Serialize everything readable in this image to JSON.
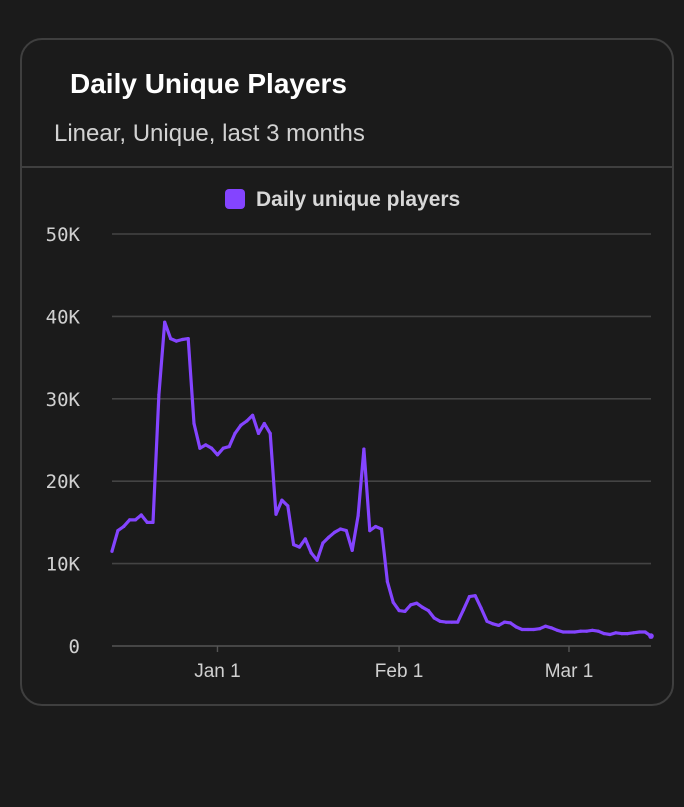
{
  "card": {
    "title": "Daily Unique Players",
    "subtitle": "Linear, Unique, last 3 months"
  },
  "colors": {
    "background": "#1b1b1b",
    "border": "#3f3f3f",
    "series": "#8444ff",
    "grid": "#444444"
  },
  "chart_data": {
    "type": "line",
    "title": "Daily Unique Players",
    "subtitle": "Linear, Unique, last 3 months",
    "legend": "top-center",
    "grid": true,
    "ylim": [
      0,
      50000
    ],
    "yticks": [
      0,
      10000,
      20000,
      30000,
      40000,
      50000
    ],
    "ytick_labels": [
      "0",
      "10K",
      "20K",
      "30K",
      "40K",
      "50K"
    ],
    "xlim": [
      "2023-12-14",
      "2024-03-15"
    ],
    "xticks": [
      "2024-01-01",
      "2024-02-01",
      "2024-03-01"
    ],
    "xtick_labels": [
      "Jan 1",
      "Feb 1",
      "Mar 1"
    ],
    "series": [
      {
        "name": "Daily unique players",
        "color": "#8444ff",
        "x": [
          "2023-12-14",
          "2023-12-15",
          "2023-12-16",
          "2023-12-17",
          "2023-12-18",
          "2023-12-19",
          "2023-12-20",
          "2023-12-21",
          "2023-12-22",
          "2023-12-23",
          "2023-12-24",
          "2023-12-25",
          "2023-12-26",
          "2023-12-27",
          "2023-12-28",
          "2023-12-29",
          "2023-12-30",
          "2023-12-31",
          "2024-01-01",
          "2024-01-02",
          "2024-01-03",
          "2024-01-04",
          "2024-01-05",
          "2024-01-06",
          "2024-01-07",
          "2024-01-08",
          "2024-01-09",
          "2024-01-10",
          "2024-01-11",
          "2024-01-12",
          "2024-01-13",
          "2024-01-14",
          "2024-01-15",
          "2024-01-16",
          "2024-01-17",
          "2024-01-18",
          "2024-01-19",
          "2024-01-20",
          "2024-01-21",
          "2024-01-22",
          "2024-01-23",
          "2024-01-24",
          "2024-01-25",
          "2024-01-26",
          "2024-01-27",
          "2024-01-28",
          "2024-01-29",
          "2024-01-30",
          "2024-01-31",
          "2024-02-01",
          "2024-02-02",
          "2024-02-03",
          "2024-02-04",
          "2024-02-05",
          "2024-02-06",
          "2024-02-07",
          "2024-02-08",
          "2024-02-09",
          "2024-02-10",
          "2024-02-11",
          "2024-02-12",
          "2024-02-13",
          "2024-02-14",
          "2024-02-15",
          "2024-02-16",
          "2024-02-17",
          "2024-02-18",
          "2024-02-19",
          "2024-02-20",
          "2024-02-21",
          "2024-02-22",
          "2024-02-23",
          "2024-02-24",
          "2024-02-25",
          "2024-02-26",
          "2024-02-27",
          "2024-02-28",
          "2024-02-29",
          "2024-03-01",
          "2024-03-02",
          "2024-03-03",
          "2024-03-04",
          "2024-03-05",
          "2024-03-06",
          "2024-03-07",
          "2024-03-08",
          "2024-03-09",
          "2024-03-10",
          "2024-03-11",
          "2024-03-12",
          "2024-03-13",
          "2024-03-14",
          "2024-03-15"
        ],
        "values": [
          11500,
          14000,
          14500,
          15300,
          15300,
          15900,
          15000,
          15000,
          30500,
          39300,
          37300,
          37000,
          37200,
          37300,
          27000,
          24000,
          24400,
          24000,
          23200,
          24000,
          24200,
          25800,
          26800,
          27300,
          28000,
          25800,
          27000,
          25800,
          16000,
          17700,
          17000,
          12300,
          12000,
          13000,
          11300,
          10400,
          12500,
          13200,
          13800,
          14200,
          14000,
          11600,
          15800,
          23900,
          14000,
          14500,
          14200,
          7800,
          5300,
          4300,
          4200,
          5000,
          5200,
          4700,
          4300,
          3400,
          3000,
          2900,
          2900,
          2900,
          4400,
          6000,
          6100,
          4600,
          3000,
          2700,
          2500,
          2900,
          2800,
          2300,
          2000,
          2000,
          2000,
          2100,
          2400,
          2200,
          1900,
          1700,
          1700,
          1700,
          1800,
          1800,
          1900,
          1800,
          1500,
          1400,
          1600,
          1500,
          1500,
          1600,
          1700,
          1700,
          1200
        ]
      }
    ]
  }
}
